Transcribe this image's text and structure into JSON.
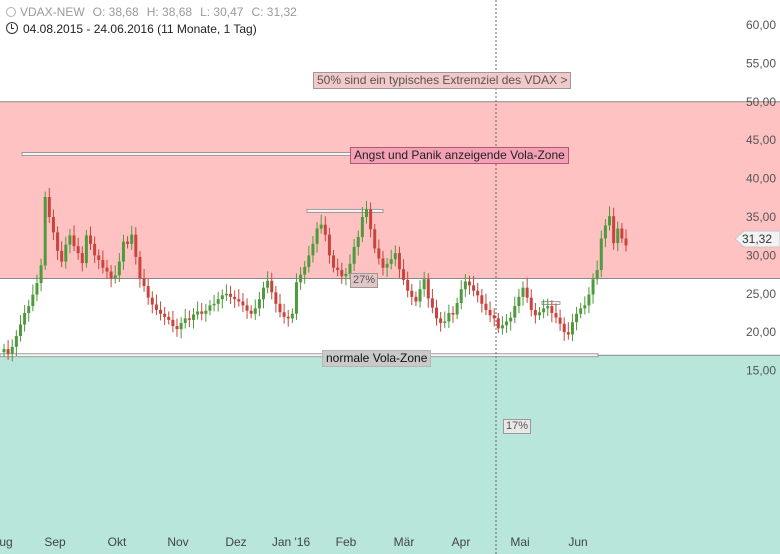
{
  "header": {
    "symbol": "VDAX-NEW",
    "open": "O: 38,68",
    "high": "H: 38,68",
    "low": "L: 30,47",
    "close": "C: 31,32",
    "range": "04.08.2015 - 24.06.2016 (11 Monate, 1 Tag)"
  },
  "annotations": {
    "extreme": "50% sind ein typisches Extremziel des VDAX >",
    "panic": "Angst und Panik anzeigende Vola-Zone",
    "normal": "normale Vola-Zone",
    "pct27": "27%",
    "pct17": "17%"
  },
  "last_price_label": "31,32",
  "colors": {
    "red_zone": "#ffc2c2",
    "green_zone": "#b8e6da",
    "up_candle": "#4f9a3c",
    "down_candle": "#c8443c"
  },
  "chart_data": {
    "type": "candlestick",
    "y_axis": {
      "position": "right",
      "range": [
        12.5,
        62
      ],
      "ticks": [
        60,
        55,
        50,
        45,
        40,
        35,
        30,
        25,
        20,
        15
      ],
      "tick_labels": [
        "60,00",
        "55,00",
        "50,00",
        "45,00",
        "40,00",
        "35,00",
        "30,00",
        "25,00",
        "20,00",
        "15,00"
      ]
    },
    "x_axis": {
      "tick_labels": [
        "Aug",
        "Sep",
        "Okt",
        "Nov",
        "Dez",
        "Jan '16",
        "Feb",
        "Mär",
        "Apr",
        "Mai",
        "Jun"
      ]
    },
    "zones": [
      {
        "name": "Angst und Panik anzeigende Vola-Zone",
        "from": 27,
        "to": 50,
        "color": "#ffc2c2"
      },
      {
        "name": "normale Vola-Zone",
        "from": 17,
        "to": 27,
        "color": "#ffffff"
      },
      {
        "from": 0,
        "to": 17,
        "color": "#b8e6da"
      }
    ],
    "reference_lines": [
      43.2,
      35.8,
      23.8
    ],
    "close_series": [
      17.8,
      17.2,
      18.1,
      19.5,
      21.0,
      22.5,
      23.4,
      24.9,
      26.4,
      28.7,
      37.6,
      35.0,
      33.0,
      30.6,
      29.2,
      31.4,
      32.6,
      31.2,
      30.3,
      29.0,
      32.6,
      31.5,
      30.0,
      29.4,
      28.4,
      27.9,
      27.0,
      27.4,
      29.2,
      31.8,
      31.5,
      32.7,
      29.8,
      27.0,
      26.0,
      24.5,
      23.6,
      22.9,
      22.4,
      22.0,
      21.6,
      20.8,
      20.4,
      21.2,
      21.8,
      21.6,
      22.3,
      22.7,
      22.4,
      22.8,
      23.5,
      23.7,
      24.3,
      24.8,
      25.0,
      24.6,
      24.3,
      24.0,
      23.5,
      22.8,
      22.4,
      23.1,
      24.3,
      25.8,
      26.7,
      25.2,
      23.7,
      22.6,
      22.0,
      21.8,
      22.4,
      26.5,
      27.5,
      28.5,
      30.0,
      31.5,
      33.5,
      34.0,
      32.7,
      30.0,
      28.4,
      28.1,
      27.3,
      27.6,
      28.9,
      31.1,
      32.4,
      35.0,
      36.0,
      33.4,
      30.9,
      29.6,
      28.4,
      28.9,
      29.5,
      30.3,
      28.2,
      26.8,
      25.4,
      24.6,
      24.0,
      25.6,
      26.9,
      24.4,
      23.2,
      21.8,
      21.2,
      21.4,
      22.5,
      22.3,
      23.8,
      25.6,
      26.6,
      26.1,
      25.4,
      24.8,
      23.7,
      22.9,
      22.2,
      21.8,
      20.5,
      20.9,
      21.4,
      21.9,
      23.4,
      24.6,
      25.8,
      24.5,
      22.9,
      22.2,
      22.6,
      23.1,
      23.4,
      22.5,
      21.9,
      21.1,
      20.0,
      19.7,
      21.3,
      22.4,
      23.1,
      23.5,
      24.9,
      26.9,
      28.1,
      32.2,
      33.9,
      35.1,
      31.6,
      33.5,
      32.2,
      31.3
    ]
  }
}
